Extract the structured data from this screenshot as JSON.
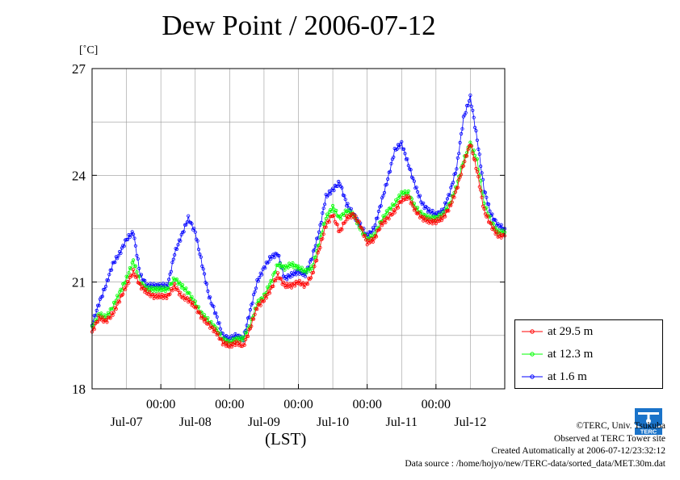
{
  "title": "Dew Point / 2006-07-12",
  "unit_label": "[˚C]",
  "x_unit_label": "(LST)",
  "credits": {
    "copyright": "©TERC, Univ. Tsukuba",
    "observed": "Observed at TERC Tower site",
    "created": "Created Automatically at 2006-07-12/23:32:12",
    "source": "Data source : /home/hojyo/new/TERC-data/sorted_data/MET.30m.dat"
  },
  "logo": {
    "text": "TERC",
    "icon": "terc-logo-icon"
  },
  "colors": {
    "s29": "#ff0000",
    "s12": "#00ff00",
    "s1": "#0000ff",
    "grid": "#999999"
  },
  "chart_data": {
    "type": "line",
    "title": "Dew Point / 2006-07-12",
    "ylabel": "[˚C]",
    "xlabel": "(LST)",
    "ylim": [
      18,
      27
    ],
    "xlim": [
      0,
      6
    ],
    "yticks": [
      18,
      21,
      24,
      27
    ],
    "xticks": [
      {
        "x": 1,
        "time": "00:00",
        "date": "Jul-07"
      },
      {
        "x": 2,
        "time": "00:00",
        "date": "Jul-08"
      },
      {
        "x": 3,
        "time": "00:00",
        "date": "Jul-09"
      },
      {
        "x": 4,
        "time": "00:00",
        "date": "Jul-10"
      },
      {
        "x": 5,
        "time": "00:00",
        "date": "Jul-11"
      }
    ],
    "xtick_dates": [
      {
        "x": 0.5,
        "date": "Jul-07"
      },
      {
        "x": 1.5,
        "date": "Jul-08"
      },
      {
        "x": 2.5,
        "date": "Jul-09"
      },
      {
        "x": 3.5,
        "date": "Jul-10"
      },
      {
        "x": 4.5,
        "date": "Jul-11"
      },
      {
        "x": 5.5,
        "date": "Jul-12"
      }
    ],
    "grid": true,
    "legend_position": "right",
    "series": [
      {
        "name": "at 29.5 m",
        "color": "#ff0000",
        "points": [
          [
            0.0,
            19.6
          ],
          [
            0.1,
            20.0
          ],
          [
            0.2,
            19.9
          ],
          [
            0.3,
            20.1
          ],
          [
            0.4,
            20.5
          ],
          [
            0.5,
            20.9
          ],
          [
            0.6,
            21.3
          ],
          [
            0.7,
            20.9
          ],
          [
            0.8,
            20.7
          ],
          [
            0.9,
            20.6
          ],
          [
            1.0,
            20.6
          ],
          [
            1.1,
            20.6
          ],
          [
            1.2,
            20.9
          ],
          [
            1.3,
            20.6
          ],
          [
            1.4,
            20.5
          ],
          [
            1.5,
            20.3
          ],
          [
            1.6,
            20.0
          ],
          [
            1.7,
            19.8
          ],
          [
            1.8,
            19.6
          ],
          [
            1.9,
            19.3
          ],
          [
            2.0,
            19.2
          ],
          [
            2.1,
            19.3
          ],
          [
            2.2,
            19.2
          ],
          [
            2.3,
            19.7
          ],
          [
            2.4,
            20.3
          ],
          [
            2.5,
            20.5
          ],
          [
            2.6,
            20.8
          ],
          [
            2.7,
            21.2
          ],
          [
            2.8,
            20.9
          ],
          [
            2.9,
            20.9
          ],
          [
            3.0,
            21.0
          ],
          [
            3.1,
            20.9
          ],
          [
            3.2,
            21.2
          ],
          [
            3.3,
            21.9
          ],
          [
            3.4,
            22.6
          ],
          [
            3.5,
            22.9
          ],
          [
            3.6,
            22.4
          ],
          [
            3.7,
            22.8
          ],
          [
            3.8,
            22.9
          ],
          [
            3.9,
            22.6
          ],
          [
            4.0,
            22.1
          ],
          [
            4.1,
            22.2
          ],
          [
            4.2,
            22.6
          ],
          [
            4.3,
            22.8
          ],
          [
            4.4,
            23.0
          ],
          [
            4.5,
            23.3
          ],
          [
            4.6,
            23.4
          ],
          [
            4.7,
            23.0
          ],
          [
            4.8,
            22.8
          ],
          [
            4.9,
            22.7
          ],
          [
            5.0,
            22.7
          ],
          [
            5.1,
            22.8
          ],
          [
            5.2,
            23.1
          ],
          [
            5.3,
            23.6
          ],
          [
            5.4,
            24.3
          ],
          [
            5.5,
            24.9
          ],
          [
            5.6,
            24.1
          ],
          [
            5.7,
            23.0
          ],
          [
            5.8,
            22.6
          ],
          [
            5.9,
            22.3
          ],
          [
            6.0,
            22.3
          ]
        ]
      },
      {
        "name": "at 12.3 m",
        "color": "#00ff00",
        "points": [
          [
            0.0,
            19.7
          ],
          [
            0.1,
            20.1
          ],
          [
            0.2,
            20.0
          ],
          [
            0.3,
            20.3
          ],
          [
            0.4,
            20.7
          ],
          [
            0.5,
            21.1
          ],
          [
            0.6,
            21.6
          ],
          [
            0.7,
            21.0
          ],
          [
            0.8,
            20.8
          ],
          [
            0.9,
            20.8
          ],
          [
            1.0,
            20.8
          ],
          [
            1.1,
            20.8
          ],
          [
            1.2,
            21.1
          ],
          [
            1.3,
            20.9
          ],
          [
            1.4,
            20.7
          ],
          [
            1.5,
            20.4
          ],
          [
            1.6,
            20.1
          ],
          [
            1.7,
            19.9
          ],
          [
            1.8,
            19.7
          ],
          [
            1.9,
            19.4
          ],
          [
            2.0,
            19.3
          ],
          [
            2.1,
            19.4
          ],
          [
            2.2,
            19.4
          ],
          [
            2.3,
            19.8
          ],
          [
            2.4,
            20.4
          ],
          [
            2.5,
            20.6
          ],
          [
            2.6,
            21.0
          ],
          [
            2.7,
            21.5
          ],
          [
            2.8,
            21.4
          ],
          [
            2.9,
            21.5
          ],
          [
            3.0,
            21.4
          ],
          [
            3.1,
            21.3
          ],
          [
            3.2,
            21.4
          ],
          [
            3.3,
            22.1
          ],
          [
            3.4,
            22.8
          ],
          [
            3.5,
            23.1
          ],
          [
            3.6,
            22.8
          ],
          [
            3.7,
            23.0
          ],
          [
            3.8,
            22.9
          ],
          [
            3.9,
            22.5
          ],
          [
            4.0,
            22.2
          ],
          [
            4.1,
            22.3
          ],
          [
            4.2,
            22.7
          ],
          [
            4.3,
            23.0
          ],
          [
            4.4,
            23.2
          ],
          [
            4.5,
            23.5
          ],
          [
            4.6,
            23.5
          ],
          [
            4.7,
            23.1
          ],
          [
            4.8,
            22.9
          ],
          [
            4.9,
            22.8
          ],
          [
            5.0,
            22.8
          ],
          [
            5.1,
            22.9
          ],
          [
            5.2,
            23.2
          ],
          [
            5.3,
            23.7
          ],
          [
            5.4,
            24.4
          ],
          [
            5.5,
            24.9
          ],
          [
            5.6,
            24.4
          ],
          [
            5.7,
            23.2
          ],
          [
            5.8,
            22.7
          ],
          [
            5.9,
            22.4
          ],
          [
            6.0,
            22.4
          ]
        ]
      },
      {
        "name": "at 1.6 m",
        "color": "#0000ff",
        "points": [
          [
            0.0,
            19.8
          ],
          [
            0.1,
            20.4
          ],
          [
            0.2,
            20.9
          ],
          [
            0.3,
            21.5
          ],
          [
            0.4,
            21.8
          ],
          [
            0.5,
            22.2
          ],
          [
            0.6,
            22.4
          ],
          [
            0.7,
            21.2
          ],
          [
            0.8,
            20.9
          ],
          [
            0.9,
            20.9
          ],
          [
            1.0,
            20.9
          ],
          [
            1.1,
            20.9
          ],
          [
            1.2,
            21.8
          ],
          [
            1.3,
            22.3
          ],
          [
            1.4,
            22.8
          ],
          [
            1.5,
            22.4
          ],
          [
            1.6,
            21.5
          ],
          [
            1.7,
            20.6
          ],
          [
            1.8,
            20.1
          ],
          [
            1.9,
            19.5
          ],
          [
            2.0,
            19.4
          ],
          [
            2.1,
            19.5
          ],
          [
            2.2,
            19.4
          ],
          [
            2.3,
            20.2
          ],
          [
            2.4,
            21.0
          ],
          [
            2.5,
            21.4
          ],
          [
            2.6,
            21.7
          ],
          [
            2.7,
            21.8
          ],
          [
            2.8,
            21.1
          ],
          [
            2.9,
            21.2
          ],
          [
            3.0,
            21.3
          ],
          [
            3.1,
            21.2
          ],
          [
            3.2,
            21.7
          ],
          [
            3.3,
            22.4
          ],
          [
            3.4,
            23.4
          ],
          [
            3.5,
            23.6
          ],
          [
            3.6,
            23.8
          ],
          [
            3.7,
            23.2
          ],
          [
            3.8,
            22.9
          ],
          [
            3.9,
            22.6
          ],
          [
            4.0,
            22.3
          ],
          [
            4.1,
            22.5
          ],
          [
            4.2,
            23.2
          ],
          [
            4.3,
            23.9
          ],
          [
            4.4,
            24.7
          ],
          [
            4.5,
            24.9
          ],
          [
            4.6,
            24.3
          ],
          [
            4.7,
            23.7
          ],
          [
            4.8,
            23.2
          ],
          [
            4.9,
            23.0
          ],
          [
            5.0,
            22.9
          ],
          [
            5.1,
            23.0
          ],
          [
            5.2,
            23.5
          ],
          [
            5.3,
            24.2
          ],
          [
            5.4,
            25.6
          ],
          [
            5.5,
            26.2
          ],
          [
            5.6,
            25.0
          ],
          [
            5.7,
            23.6
          ],
          [
            5.8,
            22.9
          ],
          [
            5.9,
            22.6
          ],
          [
            6.0,
            22.5
          ]
        ]
      }
    ]
  }
}
